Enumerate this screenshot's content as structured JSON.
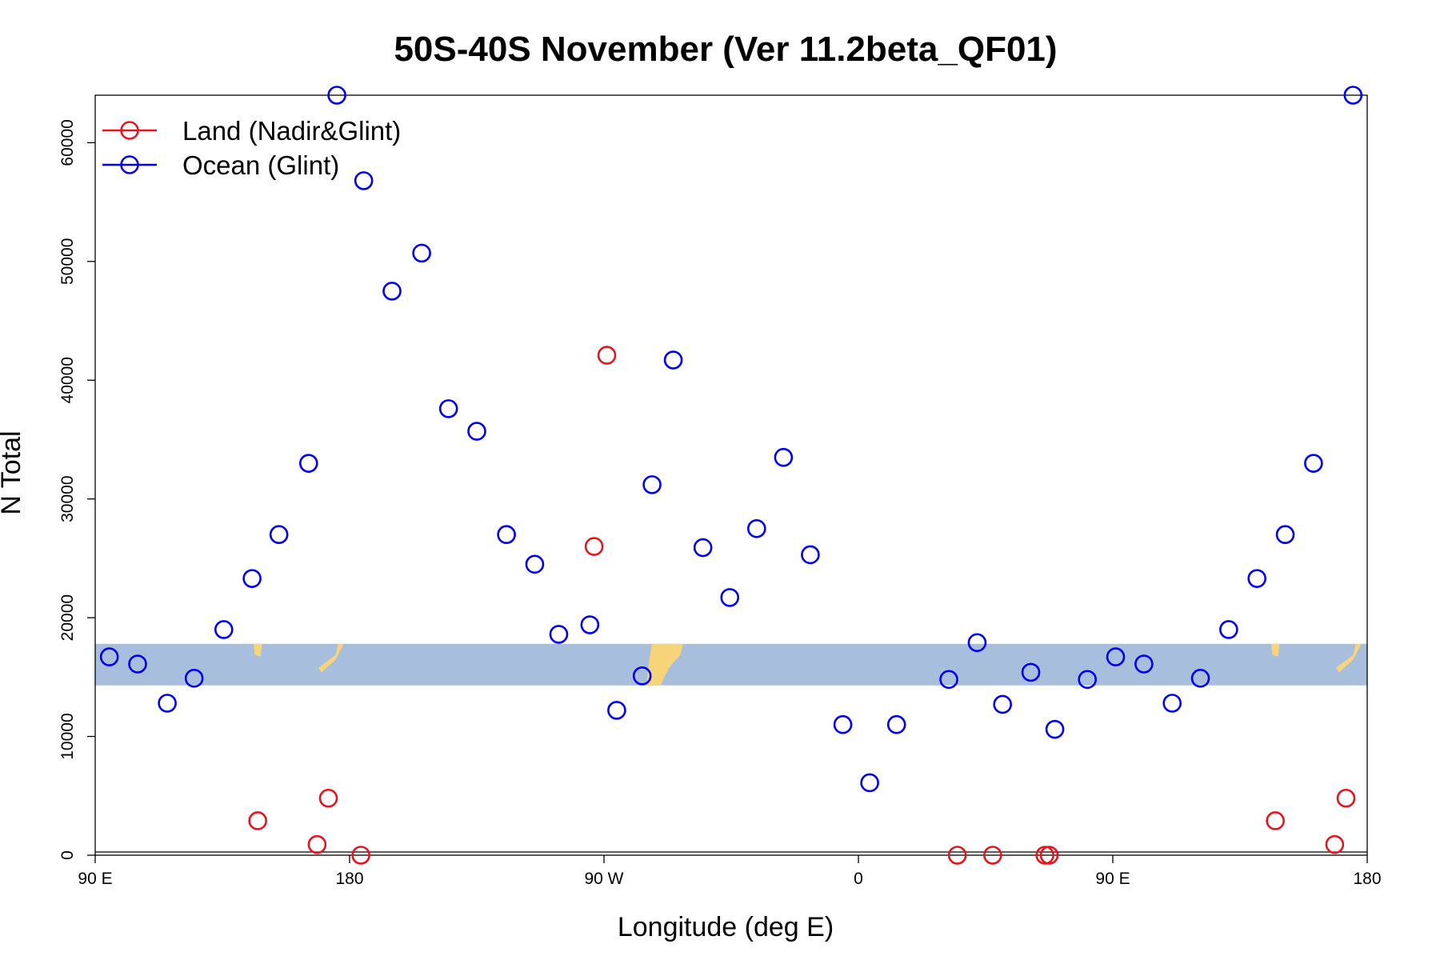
{
  "chart_data": {
    "type": "scatter",
    "title": "50S-40S November (Ver 11.2beta_QF01)",
    "xlabel": "Longitude (deg E)",
    "ylabel": "N Total",
    "x_axis": {
      "range_deg_east": [
        90,
        540
      ],
      "ticks": [
        {
          "value": 90,
          "label": "90 E"
        },
        {
          "value": 180,
          "label": "180"
        },
        {
          "value": 270,
          "label": "90 W"
        },
        {
          "value": 360,
          "label": "0"
        },
        {
          "value": 450,
          "label": "90 E"
        },
        {
          "value": 540,
          "label": "180"
        }
      ]
    },
    "y_axis": {
      "range": [
        0,
        64000
      ],
      "ticks": [
        0,
        10000,
        20000,
        30000,
        40000,
        50000,
        60000
      ],
      "tick_labels": [
        "0",
        "10000",
        "20000",
        "30000",
        "40000",
        "50000",
        "60000"
      ]
    },
    "grid": false,
    "legend_position": "top-left",
    "background_map_band": {
      "y_range": [
        14300,
        17800
      ],
      "ocean_color": "#a7bedc",
      "land_color": "#f7d37a"
    },
    "series": [
      {
        "name": "Land (Nadir&Glint)",
        "color": "#e8141c",
        "marker": "open-circle",
        "points": [
          [
            147.5,
            2900
          ],
          [
            168.5,
            900
          ],
          [
            172.5,
            4800
          ],
          [
            184,
            0
          ],
          [
            266.5,
            26000
          ],
          [
            271,
            42100
          ],
          [
            395,
            0
          ],
          [
            407.5,
            0
          ],
          [
            426,
            0
          ],
          [
            427.5,
            0
          ],
          [
            507.5,
            2900
          ],
          [
            528.5,
            900
          ],
          [
            532.5,
            4800
          ]
        ]
      },
      {
        "name": "Ocean (Glint)",
        "color": "#0000ee",
        "marker": "open-circle",
        "points": [
          [
            95,
            16700
          ],
          [
            105,
            16100
          ],
          [
            115.5,
            12800
          ],
          [
            125,
            14900
          ],
          [
            135.5,
            19000
          ],
          [
            145.5,
            23300
          ],
          [
            155,
            27000
          ],
          [
            165.5,
            33000
          ],
          [
            175.5,
            64000
          ],
          [
            185,
            56800
          ],
          [
            195,
            47500
          ],
          [
            205.5,
            50700
          ],
          [
            215,
            37600
          ],
          [
            225,
            35700
          ],
          [
            235.5,
            27000
          ],
          [
            245.5,
            24500
          ],
          [
            254,
            18600
          ],
          [
            265,
            19400
          ],
          [
            274.5,
            12200
          ],
          [
            283.5,
            15100
          ],
          [
            287,
            31200
          ],
          [
            294.5,
            41700
          ],
          [
            305,
            25900
          ],
          [
            314.5,
            21700
          ],
          [
            324,
            27500
          ],
          [
            333.5,
            33500
          ],
          [
            343,
            25300
          ],
          [
            354.5,
            11000
          ],
          [
            364,
            6100
          ],
          [
            373.5,
            11000
          ],
          [
            392,
            14800
          ],
          [
            402,
            17900
          ],
          [
            411,
            12700
          ],
          [
            421,
            15400
          ],
          [
            429.5,
            10600
          ],
          [
            441,
            14800
          ],
          [
            451,
            16700
          ],
          [
            461,
            16100
          ],
          [
            471,
            12800
          ],
          [
            481,
            14900
          ],
          [
            491,
            19000
          ],
          [
            501,
            23300
          ],
          [
            511,
            27000
          ],
          [
            521,
            33000
          ],
          [
            535,
            64000
          ]
        ]
      }
    ]
  }
}
